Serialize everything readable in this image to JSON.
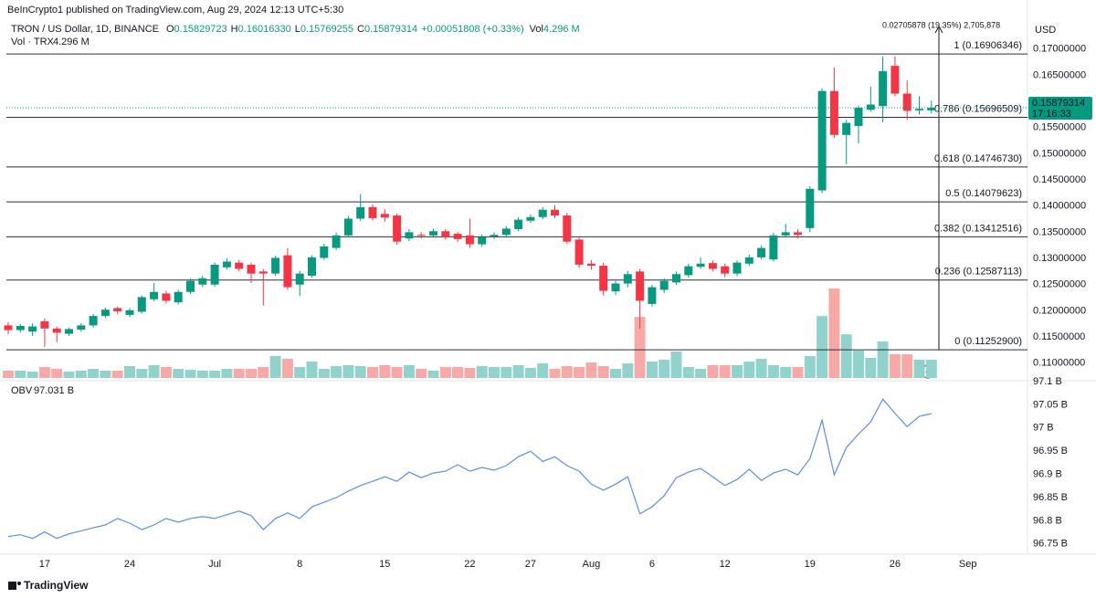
{
  "publisher": "BeInCrypto1 published on TradingView.com, Aug 29, 2024 12:13 UTC+5:30",
  "brand": "TradingView",
  "chart_data": {
    "type": "candlestick",
    "legend": {
      "symbol": "TRON / US Dollar, 1D, BINANCE",
      "items": [
        {
          "key": "O",
          "value": "0.15829723"
        },
        {
          "key": "H",
          "value": "0.16016330"
        },
        {
          "key": "L",
          "value": "0.15769255"
        },
        {
          "key": "C",
          "value": "0.15879314"
        }
      ],
      "change": "+0.00051808 (+0.33%)",
      "vol_key": "Vol"
    },
    "currency": "USD",
    "up_color": "#089981",
    "down_color": "#f23645",
    "volume_up_color": "#92d2cc",
    "volume_down_color": "#f7a9a7",
    "categories": [
      null,
      null,
      null,
      "17",
      null,
      null,
      null,
      null,
      null,
      null,
      "24",
      null,
      null,
      null,
      null,
      null,
      null,
      "Jul",
      null,
      null,
      null,
      null,
      null,
      null,
      "8",
      null,
      null,
      null,
      null,
      null,
      null,
      "15",
      null,
      null,
      null,
      null,
      null,
      null,
      "22",
      null,
      null,
      null,
      null,
      "27",
      null,
      null,
      null,
      null,
      "Aug",
      null,
      null,
      null,
      null,
      "6",
      null,
      null,
      null,
      null,
      null,
      "12",
      null,
      null,
      null,
      null,
      null,
      null,
      "19",
      null,
      null,
      null,
      null,
      null,
      null,
      "26",
      null,
      null,
      null,
      null,
      null,
      "Sep"
    ],
    "open": [
      0.1172,
      0.1163,
      0.116,
      0.118,
      0.1166,
      0.1156,
      0.1164,
      0.1172,
      0.119,
      0.1205,
      0.1192,
      0.1198,
      0.1222,
      0.1233,
      0.1216,
      0.1236,
      0.125,
      0.125,
      0.1283,
      0.1292,
      0.1288,
      0.1275,
      0.1271,
      0.1306,
      0.125,
      0.1267,
      0.1301,
      0.132,
      0.1344,
      0.1376,
      0.1398,
      0.1385,
      0.1382,
      0.1338,
      0.1345,
      0.1344,
      0.1352,
      0.1347,
      0.1344,
      0.1327,
      0.1342,
      0.1345,
      0.1356,
      0.1372,
      0.1379,
      0.1393,
      0.1382,
      0.1336,
      0.129,
      0.1286,
      0.1237,
      0.1252,
      0.1275,
      0.1213,
      0.124,
      0.1254,
      0.1268,
      0.1284,
      0.1291,
      0.1285,
      0.1271,
      0.129,
      0.1302,
      0.1298,
      0.1344,
      0.135,
      0.1358,
      0.143,
      0.162,
      0.1536,
      0.1553,
      0.1584,
      0.1591,
      0.1668,
      0.1615,
      0.1583,
      0.15829723,
      null,
      null,
      null
    ],
    "high": [
      0.1178,
      0.1175,
      0.1176,
      0.1185,
      0.117,
      0.1168,
      0.1176,
      0.1194,
      0.1206,
      0.1208,
      0.1205,
      0.1229,
      0.1253,
      0.1238,
      0.124,
      0.1262,
      0.1267,
      0.1292,
      0.13,
      0.1297,
      0.1292,
      0.128,
      0.1305,
      0.132,
      0.1276,
      0.1306,
      0.1328,
      0.1349,
      0.1381,
      0.1423,
      0.1403,
      0.1394,
      0.1386,
      0.1356,
      0.135,
      0.1357,
      0.1356,
      0.1351,
      0.1376,
      0.1346,
      0.135,
      0.1362,
      0.1379,
      0.1384,
      0.1398,
      0.1402,
      0.1387,
      0.134,
      0.1297,
      0.1292,
      0.1257,
      0.1276,
      0.128,
      0.125,
      0.1262,
      0.1275,
      0.129,
      0.1302,
      0.1296,
      0.129,
      0.1296,
      0.1307,
      0.1325,
      0.1349,
      0.1366,
      0.1356,
      0.1438,
      0.1625,
      0.1665,
      0.1565,
      0.1592,
      0.1628,
      0.1686,
      0.1686,
      0.164,
      0.161,
      0.1601633,
      null,
      null,
      null
    ],
    "low": [
      0.1155,
      0.1158,
      0.1152,
      0.1131,
      0.114,
      0.1152,
      0.116,
      0.1168,
      0.1186,
      0.1193,
      0.1188,
      0.1195,
      0.1218,
      0.1214,
      0.1212,
      0.1232,
      0.1245,
      0.1246,
      0.1279,
      0.1276,
      0.1253,
      0.121,
      0.1266,
      0.124,
      0.1228,
      0.1263,
      0.1297,
      0.1316,
      0.134,
      0.1372,
      0.1372,
      0.137,
      0.1326,
      0.1333,
      0.1338,
      0.134,
      0.1336,
      0.1332,
      0.132,
      0.1322,
      0.1337,
      0.1341,
      0.1352,
      0.1368,
      0.1375,
      0.1377,
      0.1328,
      0.1282,
      0.1278,
      0.1229,
      0.123,
      0.1245,
      0.1166,
      0.1208,
      0.1234,
      0.1249,
      0.1263,
      0.128,
      0.1275,
      0.1264,
      0.1266,
      0.1286,
      0.1298,
      0.1294,
      0.134,
      0.1338,
      0.135,
      0.1425,
      0.153,
      0.148,
      0.152,
      0.158,
      0.156,
      0.161,
      0.1565,
      0.1575,
      0.15769255,
      null,
      null,
      null
    ],
    "close": [
      0.1163,
      0.1171,
      0.117,
      0.1166,
      0.1158,
      0.1165,
      0.1172,
      0.119,
      0.1202,
      0.1199,
      0.1201,
      0.1226,
      0.1236,
      0.1219,
      0.1236,
      0.1257,
      0.1262,
      0.1288,
      0.1294,
      0.128,
      0.1271,
      0.1271,
      0.1301,
      0.1245,
      0.1271,
      0.1302,
      0.1323,
      0.1344,
      0.1376,
      0.1398,
      0.1377,
      0.1378,
      0.1332,
      0.135,
      0.1344,
      0.1352,
      0.134,
      0.1337,
      0.1327,
      0.1341,
      0.1345,
      0.1357,
      0.1374,
      0.1379,
      0.1393,
      0.1382,
      0.1332,
      0.1288,
      0.1286,
      0.1238,
      0.1252,
      0.127,
      0.1219,
      0.1245,
      0.1257,
      0.127,
      0.1285,
      0.129,
      0.128,
      0.1271,
      0.1292,
      0.1302,
      0.132,
      0.1344,
      0.135,
      0.1345,
      0.1433,
      0.162,
      0.1536,
      0.1559,
      0.1588,
      0.1594,
      0.1658,
      0.1615,
      0.1582,
      0.1586,
      0.15879314,
      null,
      null,
      null
    ],
    "last_price": {
      "label": "0.15879314",
      "countdown": "17:16:33"
    },
    "ylim": [
      0.1075,
      0.1745
    ],
    "yticks": [
      {
        "value": 0.17,
        "label": "0.17000000"
      },
      {
        "value": 0.165,
        "label": "0.16500000"
      },
      {
        "value": 0.16,
        "label": "0.16000000"
      },
      {
        "value": 0.155,
        "label": "0.15500000"
      },
      {
        "value": 0.15,
        "label": "0.15000000"
      },
      {
        "value": 0.145,
        "label": "0.14500000"
      },
      {
        "value": 0.14,
        "label": "0.14000000"
      },
      {
        "value": 0.135,
        "label": "0.13500000"
      },
      {
        "value": 0.13,
        "label": "0.13000000"
      },
      {
        "value": 0.125,
        "label": "0.12500000"
      },
      {
        "value": 0.12,
        "label": "0.12000000"
      },
      {
        "value": 0.115,
        "label": "0.11500000"
      },
      {
        "value": 0.11,
        "label": "0.11000000"
      }
    ],
    "fib_levels": [
      {
        "value": 0.16906346,
        "label": "1 (0.16906346)"
      },
      {
        "value": 0.15696509,
        "label": "0.786 (0.15696509)"
      },
      {
        "value": 0.1474673,
        "label": "0.618 (0.14746730)"
      },
      {
        "value": 0.14079623,
        "label": "0.5 (0.14079623)"
      },
      {
        "value": 0.13412516,
        "label": "0.382 (0.13412516)"
      },
      {
        "value": 0.12587113,
        "label": "0.236 (0.12587113)"
      },
      {
        "value": 0.112529,
        "label": "0 (0.11252900)"
      }
    ],
    "measure": "0.02705878 (19.35%) 2,705,878",
    "volume": {
      "name": "Vol · TRX",
      "legend_value": "4.296 M",
      "values": [
        1.72,
        1.72,
        1.51,
        2.58,
        2.15,
        1.51,
        1.72,
        2.15,
        1.72,
        1.72,
        2.8,
        2.15,
        3.01,
        2.58,
        2.15,
        1.94,
        1.72,
        1.72,
        2.15,
        2.15,
        2.15,
        2.58,
        5.16,
        4.52,
        2.58,
        3.87,
        2.15,
        2.8,
        3.01,
        2.8,
        2.58,
        3.01,
        2.58,
        3.01,
        2.15,
        1.72,
        2.58,
        2.58,
        2.37,
        2.8,
        2.58,
        2.58,
        3.01,
        2.37,
        3.44,
        2.15,
        2.8,
        2.58,
        3.66,
        2.8,
        2.15,
        3.44,
        14.4,
        3.87,
        4.3,
        6.24,
        2.58,
        2.15,
        3.01,
        3.01,
        3.01,
        3.87,
        4.52,
        3.01,
        2.58,
        2.58,
        5.16,
        14.6,
        21.1,
        10.3,
        6.45,
        4.73,
        8.6,
        5.59,
        5.59,
        4.3,
        4.296,
        null,
        null,
        null
      ]
    },
    "indicator": {
      "type": "line",
      "name": "OBV",
      "legend_value": "97.031 B",
      "color": "#5b8fe0",
      "values": [
        96.766,
        96.77,
        96.762,
        96.776,
        96.762,
        96.772,
        96.778,
        96.785,
        96.791,
        96.805,
        96.795,
        96.781,
        96.791,
        96.805,
        96.797,
        96.805,
        96.809,
        96.805,
        96.813,
        96.821,
        96.811,
        96.781,
        96.805,
        96.817,
        96.805,
        96.83,
        96.84,
        96.85,
        96.864,
        96.876,
        96.885,
        96.895,
        96.885,
        96.905,
        96.893,
        96.903,
        96.907,
        96.921,
        96.907,
        96.915,
        96.909,
        96.919,
        96.938,
        96.95,
        96.928,
        96.938,
        96.919,
        96.907,
        96.879,
        96.866,
        96.879,
        96.895,
        96.815,
        96.83,
        96.854,
        96.893,
        96.905,
        96.913,
        96.895,
        96.876,
        96.889,
        96.911,
        96.887,
        96.903,
        96.911,
        96.899,
        96.934,
        97.017,
        96.899,
        96.958,
        96.987,
        97.013,
        97.062,
        97.032,
        97.003,
        97.025,
        97.031,
        null,
        null,
        null
      ],
      "ylim": [
        96.73,
        97.1
      ],
      "yticks": [
        {
          "value": 97.1,
          "label": "97.1 B"
        },
        {
          "value": 97.05,
          "label": "97.05 B"
        },
        {
          "value": 97,
          "label": "97 B"
        },
        {
          "value": 96.95,
          "label": "96.95 B"
        },
        {
          "value": 96.9,
          "label": "96.9 B"
        },
        {
          "value": 96.85,
          "label": "96.85 B"
        },
        {
          "value": 96.8,
          "label": "96.8 B"
        },
        {
          "value": 96.75,
          "label": "96.75 B"
        }
      ]
    }
  }
}
